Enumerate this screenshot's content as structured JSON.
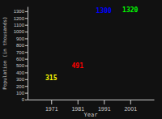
{
  "chart_data": {
    "type": "scatter",
    "xlabel": "Year",
    "ylabel": "Population (in thousands)",
    "x": [
      1971,
      1981,
      1991,
      2001
    ],
    "values": [
      315,
      491,
      1300,
      1320
    ],
    "colors": [
      "#ffff00",
      "#ff0000",
      "#0000ff",
      "#00ff00"
    ],
    "marker": "none",
    "data_labels": true,
    "xlim": [
      1962,
      2010
    ],
    "ylim": [
      0,
      1370
    ],
    "xticks": [
      1971,
      1981,
      1991,
      2001
    ],
    "yticks": [
      0,
      100,
      200,
      300,
      400,
      500,
      600,
      700,
      800,
      900,
      1000,
      1100,
      1200,
      1300
    ]
  }
}
